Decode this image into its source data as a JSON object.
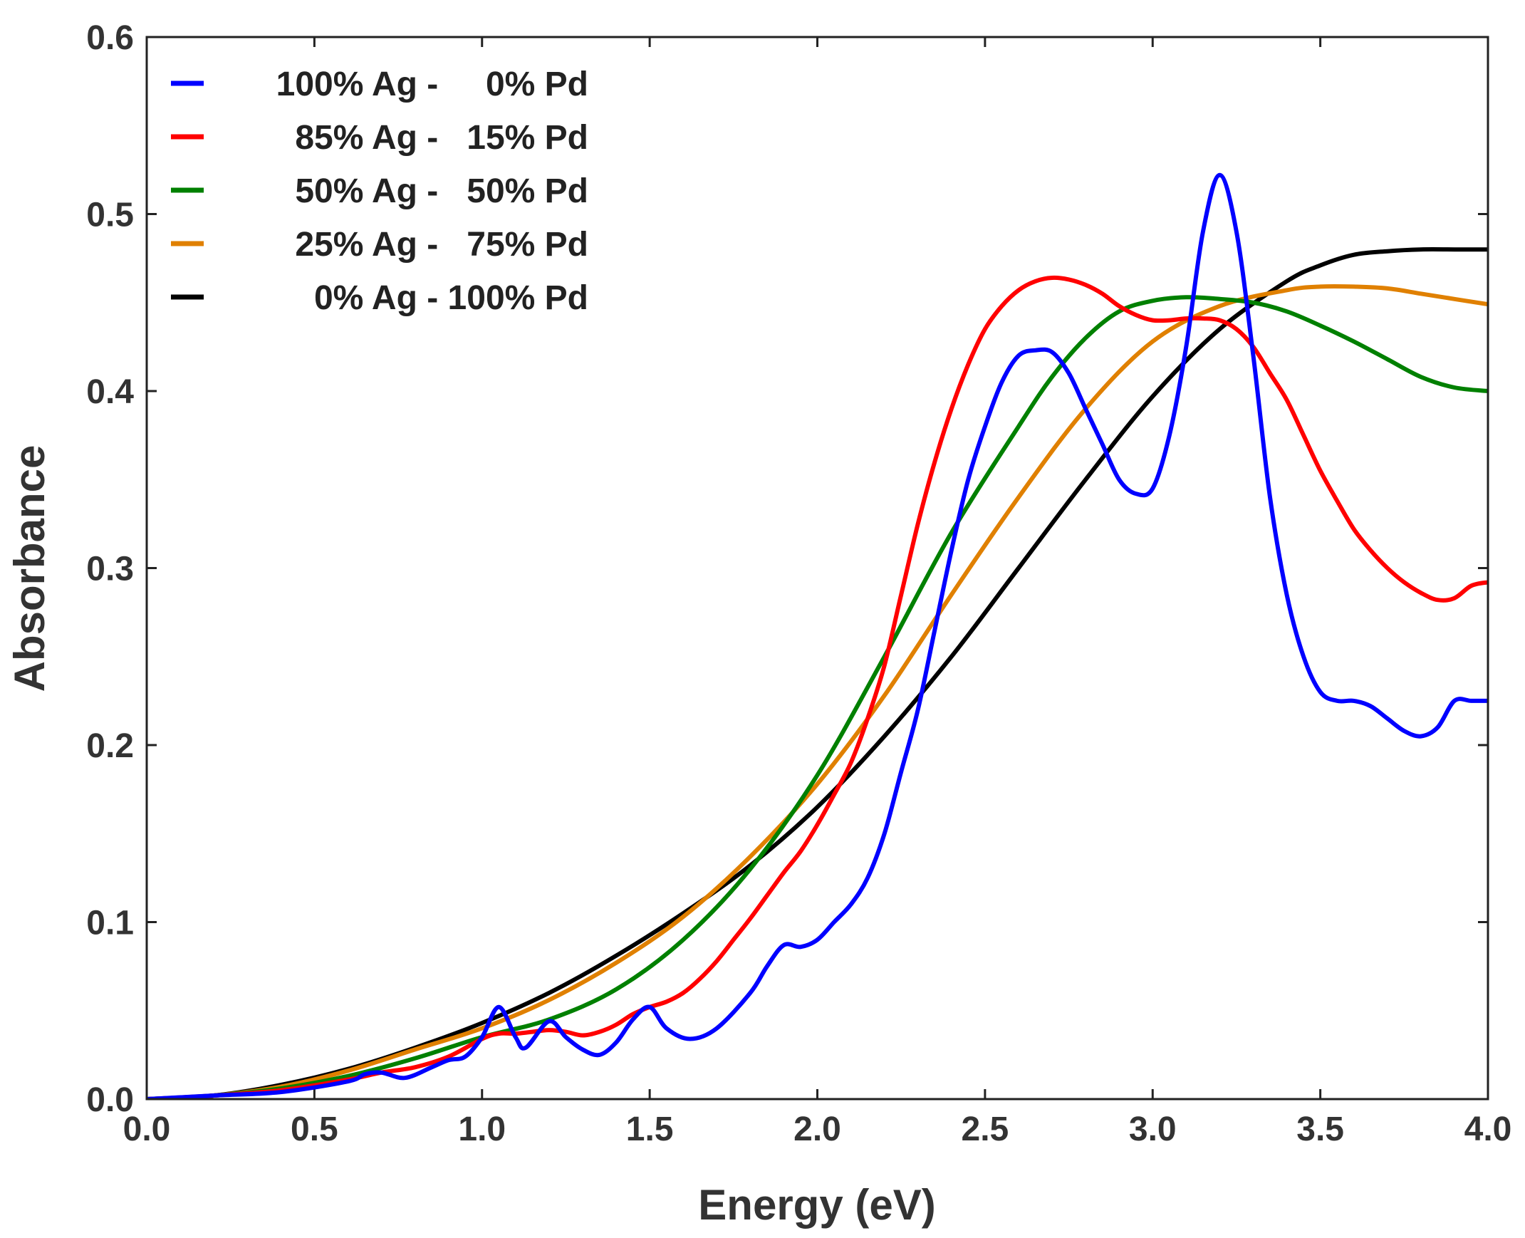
{
  "chart_data": {
    "type": "line",
    "title": "",
    "xlabel": "Energy (eV)",
    "ylabel": "Absorbance",
    "xlim": [
      0.0,
      4.0
    ],
    "ylim": [
      0.0,
      0.6
    ],
    "xticks": [
      "0.0",
      "0.5",
      "1.0",
      "1.5",
      "2.0",
      "2.5",
      "3.0",
      "3.5",
      "4.0"
    ],
    "yticks": [
      "0.0",
      "0.1",
      "0.2",
      "0.3",
      "0.4",
      "0.5",
      "0.6"
    ],
    "grid": false,
    "legend_position": "top-left",
    "series": [
      {
        "name": "100% Ag -     0% Pd",
        "color": "#0000ff",
        "x": [
          0.0,
          0.2,
          0.4,
          0.6,
          0.65,
          0.7,
          0.77,
          0.85,
          0.9,
          0.95,
          1.0,
          1.05,
          1.1,
          1.13,
          1.2,
          1.25,
          1.3,
          1.35,
          1.4,
          1.45,
          1.5,
          1.55,
          1.62,
          1.7,
          1.8,
          1.85,
          1.9,
          1.95,
          2.0,
          2.05,
          2.1,
          2.15,
          2.2,
          2.25,
          2.3,
          2.35,
          2.4,
          2.45,
          2.5,
          2.55,
          2.6,
          2.65,
          2.7,
          2.75,
          2.8,
          2.85,
          2.9,
          2.95,
          3.0,
          3.05,
          3.1,
          3.15,
          3.2,
          3.25,
          3.3,
          3.35,
          3.4,
          3.45,
          3.5,
          3.55,
          3.6,
          3.65,
          3.7,
          3.75,
          3.8,
          3.85,
          3.9,
          3.95,
          4.0
        ],
        "y": [
          0.0,
          0.002,
          0.004,
          0.01,
          0.014,
          0.015,
          0.012,
          0.018,
          0.022,
          0.024,
          0.035,
          0.052,
          0.035,
          0.029,
          0.044,
          0.035,
          0.028,
          0.025,
          0.032,
          0.045,
          0.052,
          0.04,
          0.034,
          0.04,
          0.06,
          0.075,
          0.087,
          0.086,
          0.09,
          0.1,
          0.11,
          0.125,
          0.15,
          0.185,
          0.22,
          0.265,
          0.31,
          0.35,
          0.38,
          0.405,
          0.42,
          0.423,
          0.422,
          0.41,
          0.39,
          0.37,
          0.35,
          0.342,
          0.345,
          0.375,
          0.425,
          0.49,
          0.522,
          0.49,
          0.42,
          0.34,
          0.285,
          0.25,
          0.23,
          0.225,
          0.225,
          0.222,
          0.215,
          0.208,
          0.205,
          0.21,
          0.225,
          0.225,
          0.225
        ]
      },
      {
        "name": "85% Ag -   15% Pd",
        "color": "#ff0000",
        "x": [
          0.0,
          0.2,
          0.4,
          0.6,
          0.7,
          0.8,
          0.9,
          1.0,
          1.05,
          1.1,
          1.15,
          1.2,
          1.25,
          1.3,
          1.35,
          1.4,
          1.45,
          1.5,
          1.55,
          1.6,
          1.65,
          1.7,
          1.75,
          1.8,
          1.85,
          1.9,
          1.95,
          2.0,
          2.05,
          2.1,
          2.15,
          2.2,
          2.25,
          2.3,
          2.35,
          2.4,
          2.45,
          2.5,
          2.55,
          2.6,
          2.65,
          2.7,
          2.75,
          2.8,
          2.85,
          2.9,
          2.95,
          3.0,
          3.05,
          3.1,
          3.15,
          3.2,
          3.25,
          3.3,
          3.35,
          3.4,
          3.45,
          3.5,
          3.55,
          3.6,
          3.65,
          3.7,
          3.75,
          3.8,
          3.85,
          3.9,
          3.95,
          4.0
        ],
        "y": [
          0.0,
          0.002,
          0.005,
          0.011,
          0.015,
          0.018,
          0.024,
          0.034,
          0.037,
          0.037,
          0.038,
          0.039,
          0.038,
          0.036,
          0.038,
          0.042,
          0.048,
          0.052,
          0.055,
          0.06,
          0.068,
          0.078,
          0.09,
          0.102,
          0.115,
          0.128,
          0.14,
          0.155,
          0.172,
          0.19,
          0.215,
          0.245,
          0.285,
          0.325,
          0.36,
          0.39,
          0.415,
          0.435,
          0.448,
          0.457,
          0.462,
          0.464,
          0.463,
          0.46,
          0.455,
          0.448,
          0.443,
          0.44,
          0.44,
          0.441,
          0.441,
          0.44,
          0.435,
          0.425,
          0.41,
          0.395,
          0.375,
          0.355,
          0.338,
          0.322,
          0.31,
          0.3,
          0.292,
          0.286,
          0.282,
          0.283,
          0.29,
          0.292
        ]
      },
      {
        "name": "50% Ag -   50% Pd",
        "color": "#008000",
        "x": [
          0.0,
          0.2,
          0.4,
          0.6,
          0.8,
          1.0,
          1.2,
          1.4,
          1.6,
          1.8,
          2.0,
          2.2,
          2.4,
          2.6,
          2.7,
          2.8,
          2.9,
          3.0,
          3.1,
          3.2,
          3.3,
          3.4,
          3.5,
          3.6,
          3.7,
          3.8,
          3.9,
          4.0
        ],
        "y": [
          0.0,
          0.002,
          0.006,
          0.013,
          0.023,
          0.035,
          0.045,
          0.062,
          0.09,
          0.13,
          0.183,
          0.25,
          0.32,
          0.38,
          0.408,
          0.43,
          0.445,
          0.451,
          0.453,
          0.452,
          0.45,
          0.445,
          0.437,
          0.428,
          0.418,
          0.408,
          0.402,
          0.4
        ]
      },
      {
        "name": "25% Ag -   75% Pd",
        "color": "#e08000",
        "x": [
          0.0,
          0.2,
          0.4,
          0.6,
          0.8,
          1.0,
          1.2,
          1.4,
          1.6,
          1.8,
          2.0,
          2.2,
          2.4,
          2.6,
          2.8,
          3.0,
          3.2,
          3.4,
          3.5,
          3.6,
          3.7,
          3.8,
          3.9,
          4.0
        ],
        "y": [
          0.0,
          0.002,
          0.007,
          0.016,
          0.028,
          0.04,
          0.056,
          0.077,
          0.103,
          0.137,
          0.178,
          0.228,
          0.285,
          0.34,
          0.39,
          0.428,
          0.448,
          0.457,
          0.459,
          0.459,
          0.458,
          0.455,
          0.452,
          0.449
        ]
      },
      {
        "name": "0% Ag - 100% Pd",
        "color": "#000000",
        "x": [
          0.0,
          0.2,
          0.4,
          0.6,
          0.8,
          1.0,
          1.2,
          1.4,
          1.6,
          1.8,
          2.0,
          2.2,
          2.4,
          2.6,
          2.8,
          3.0,
          3.2,
          3.4,
          3.5,
          3.6,
          3.7,
          3.8,
          3.9,
          4.0
        ],
        "y": [
          0.0,
          0.002,
          0.008,
          0.017,
          0.029,
          0.043,
          0.06,
          0.081,
          0.105,
          0.132,
          0.165,
          0.205,
          0.25,
          0.3,
          0.35,
          0.397,
          0.435,
          0.462,
          0.471,
          0.477,
          0.479,
          0.48,
          0.48,
          0.48
        ]
      }
    ]
  }
}
